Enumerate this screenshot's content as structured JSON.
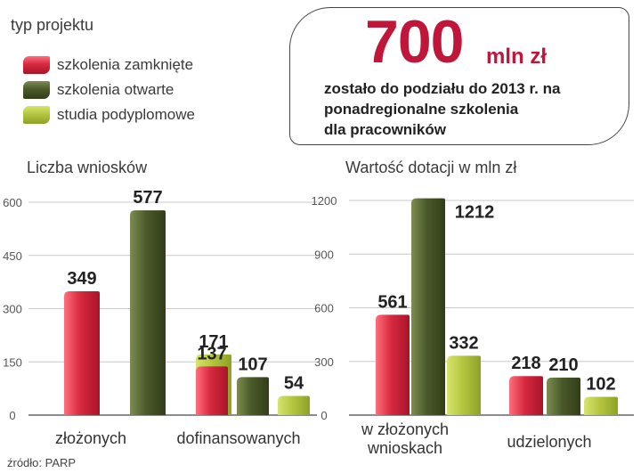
{
  "legend": {
    "title": "typ projektu",
    "items": [
      {
        "label": "szkolenia zamknięte",
        "color": "#d8293f"
      },
      {
        "label": "szkolenia otwarte",
        "color": "#4b5a2a"
      },
      {
        "label": "studia podyplomowe",
        "color": "#b4c640"
      }
    ]
  },
  "callout": {
    "amount": "700",
    "unit": "mln zł",
    "lines": [
      "zostało do podziału do 2013 r. na",
      "ponadregionalne szkolenia",
      "dla pracowników"
    ]
  },
  "source": "źródło: PARP",
  "chart_data": [
    {
      "type": "bar",
      "title": "Liczba wniosków",
      "categories": [
        "złożonych",
        "dofinansowanych"
      ],
      "series": [
        {
          "name": "szkolenia zamknięte",
          "values": [
            349,
            137
          ]
        },
        {
          "name": "szkolenia otwarte",
          "values": [
            577,
            107
          ]
        },
        {
          "name": "studia podyplomowe",
          "values": [
            171,
            54
          ]
        }
      ],
      "yticks": [
        0,
        150,
        300,
        450,
        600
      ],
      "ylim": [
        0,
        600
      ],
      "grid": true
    },
    {
      "type": "bar",
      "title": "Wartość dotacji w mln zł",
      "categories": [
        "w złożonych wnioskach",
        "udzielonych"
      ],
      "series": [
        {
          "name": "szkolenia zamknięte",
          "values": [
            561,
            218
          ]
        },
        {
          "name": "szkolenia otwarte",
          "values": [
            1212,
            210
          ]
        },
        {
          "name": "studia podyplomowe",
          "values": [
            332,
            102
          ]
        }
      ],
      "yticks": [
        0,
        300,
        600,
        900,
        1200
      ],
      "ylim": [
        0,
        1200
      ],
      "grid": true
    }
  ]
}
